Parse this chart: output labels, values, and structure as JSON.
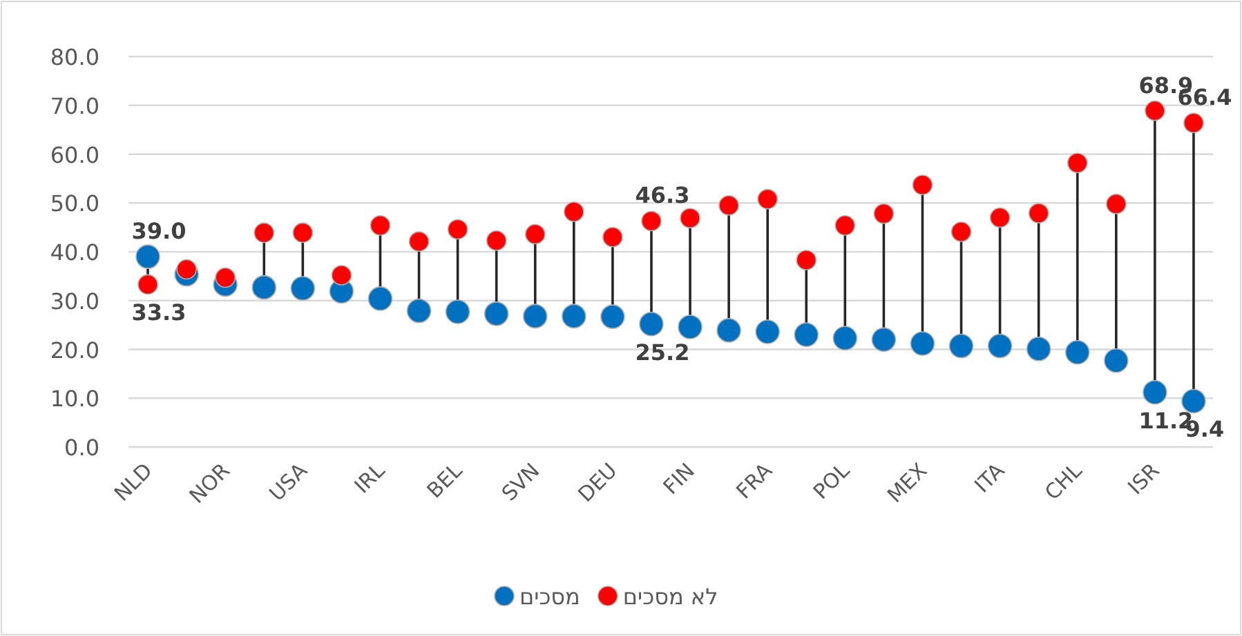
{
  "chart_data": {
    "type": "scatter",
    "categories": [
      "NLD",
      null,
      "NOR",
      null,
      "USA",
      null,
      "IRL",
      null,
      "BEL",
      null,
      "SVN",
      null,
      "DEU",
      null,
      "FIN",
      null,
      "FRA",
      null,
      "POL",
      null,
      "MEX",
      null,
      "ITA",
      null,
      "CHL",
      null,
      "ISR",
      null
    ],
    "series": [
      {
        "name": "מסכים",
        "color": "#0070c0",
        "values": [
          39.0,
          35.4,
          33.3,
          32.7,
          32.5,
          31.9,
          30.4,
          27.9,
          27.7,
          27.3,
          26.8,
          26.8,
          26.7,
          25.2,
          24.6,
          23.9,
          23.6,
          23.0,
          22.3,
          22.0,
          21.2,
          20.7,
          20.7,
          20.1,
          19.4,
          17.7,
          11.2,
          9.4
        ],
        "value_labels": [
          "39.0",
          null,
          null,
          null,
          null,
          null,
          null,
          null,
          null,
          null,
          null,
          null,
          null,
          "25.2",
          null,
          null,
          null,
          null,
          null,
          null,
          null,
          null,
          null,
          null,
          null,
          null,
          "11.2",
          "9.4"
        ]
      },
      {
        "name": "לא מסכים",
        "color": "#ff0000",
        "values": [
          33.3,
          36.4,
          34.7,
          43.9,
          43.9,
          35.2,
          45.4,
          42.1,
          44.6,
          42.3,
          43.6,
          48.2,
          43.0,
          46.3,
          46.9,
          49.5,
          50.8,
          38.3,
          45.4,
          47.8,
          53.7,
          44.1,
          47.0,
          47.9,
          58.2,
          49.8,
          68.9,
          66.4
        ],
        "value_labels": [
          "33.3",
          null,
          null,
          null,
          null,
          null,
          null,
          null,
          null,
          null,
          null,
          null,
          null,
          "46.3",
          null,
          null,
          null,
          null,
          null,
          null,
          null,
          null,
          null,
          null,
          null,
          null,
          "68.9",
          "66.4"
        ]
      }
    ],
    "ylim": [
      0,
      80
    ],
    "yticks": [
      {
        "value": 0,
        "label": "0.0"
      },
      {
        "value": 10,
        "label": "10.0"
      },
      {
        "value": 20,
        "label": "20.0"
      },
      {
        "value": 30,
        "label": "30.0"
      },
      {
        "value": 40,
        "label": "40.0"
      },
      {
        "value": 50,
        "label": "50.0"
      },
      {
        "value": 60,
        "label": "60.0"
      },
      {
        "value": 70,
        "label": "70.0"
      },
      {
        "value": 80,
        "label": "80.0"
      }
    ],
    "grid": "y",
    "legend": "bottom",
    "marker": "circle"
  }
}
